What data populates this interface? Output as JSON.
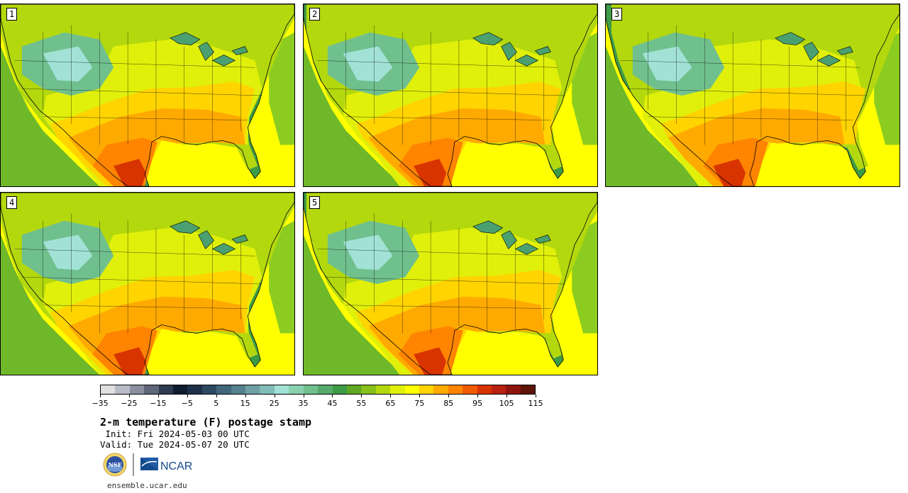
{
  "panels": [
    {
      "label": "1"
    },
    {
      "label": "2"
    },
    {
      "label": "3"
    },
    {
      "label": "4"
    },
    {
      "label": "5"
    }
  ],
  "colorbar": {
    "colors": [
      "#e0e0e0",
      "#b8bcc6",
      "#8a90a0",
      "#5e6678",
      "#2e3a50",
      "#101c30",
      "#1e3048",
      "#2e4a62",
      "#41657a",
      "#55808e",
      "#6ea0a6",
      "#82bcb8",
      "#a2e2d6",
      "#88d2b0",
      "#70c08e",
      "#56aa6c",
      "#3d9a46",
      "#5ea824",
      "#86c01a",
      "#b4d80e",
      "#e0f00a",
      "#ffff00",
      "#ffd400",
      "#ffaa00",
      "#ff8400",
      "#f05a00",
      "#d83400",
      "#b82010",
      "#8e1410",
      "#5e1408"
    ],
    "tick_labels": [
      "−35",
      "−25",
      "−15",
      "−5",
      "5",
      "15",
      "25",
      "35",
      "45",
      "55",
      "65",
      "75",
      "85",
      "95",
      "105",
      "115"
    ]
  },
  "title": "2-m temperature (F) postage stamp",
  "init": " Init: Fri 2024-05-03 00 UTC",
  "valid": "Valid: Tue 2024-05-07 20 UTC",
  "logos": {
    "nsf": "NSF",
    "ncar": "NCAR"
  },
  "footer_url": "ensemble.ucar.edu"
}
